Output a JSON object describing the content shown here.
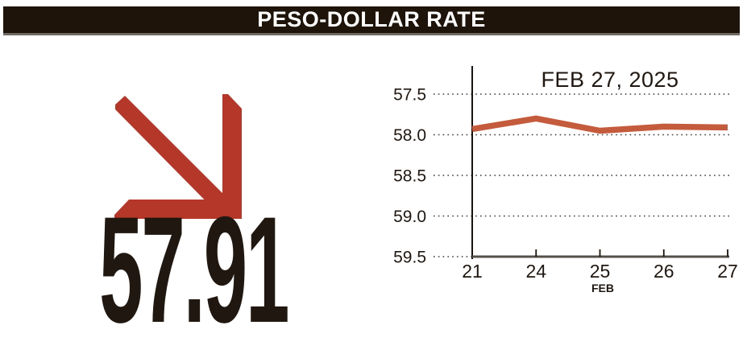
{
  "header": {
    "title": "PESO-DOLLAR RATE"
  },
  "summary": {
    "value": "57.91",
    "direction": "down",
    "arrow_icon": "down-right-arrow"
  },
  "colors": {
    "header_bg": "#1e1409",
    "header_border": "#6e6a64",
    "text_dark": "#201710",
    "arrow_red": "#b4372a",
    "line_orange": "#c45b3c",
    "grid_dot": "#3a3a3a",
    "x_axis": "#55504a"
  },
  "chart_data": {
    "type": "line",
    "title": "FEB 27, 2025",
    "xlabel": "FEB",
    "ylabel": "",
    "categories": [
      "21",
      "24",
      "25",
      "26",
      "27"
    ],
    "values": [
      57.93,
      57.8,
      57.95,
      57.9,
      57.91
    ],
    "series_name": "peso-dollar rate",
    "y_ticks": [
      "57.5",
      "58.0",
      "58.5",
      "59.0",
      "59.5"
    ],
    "y_tick_values": [
      57.5,
      58.0,
      58.5,
      59.0,
      59.5
    ],
    "ylim": [
      57.5,
      59.5
    ],
    "y_axis_inverted": true,
    "grid": "horizontal-dotted",
    "legend": "none"
  }
}
